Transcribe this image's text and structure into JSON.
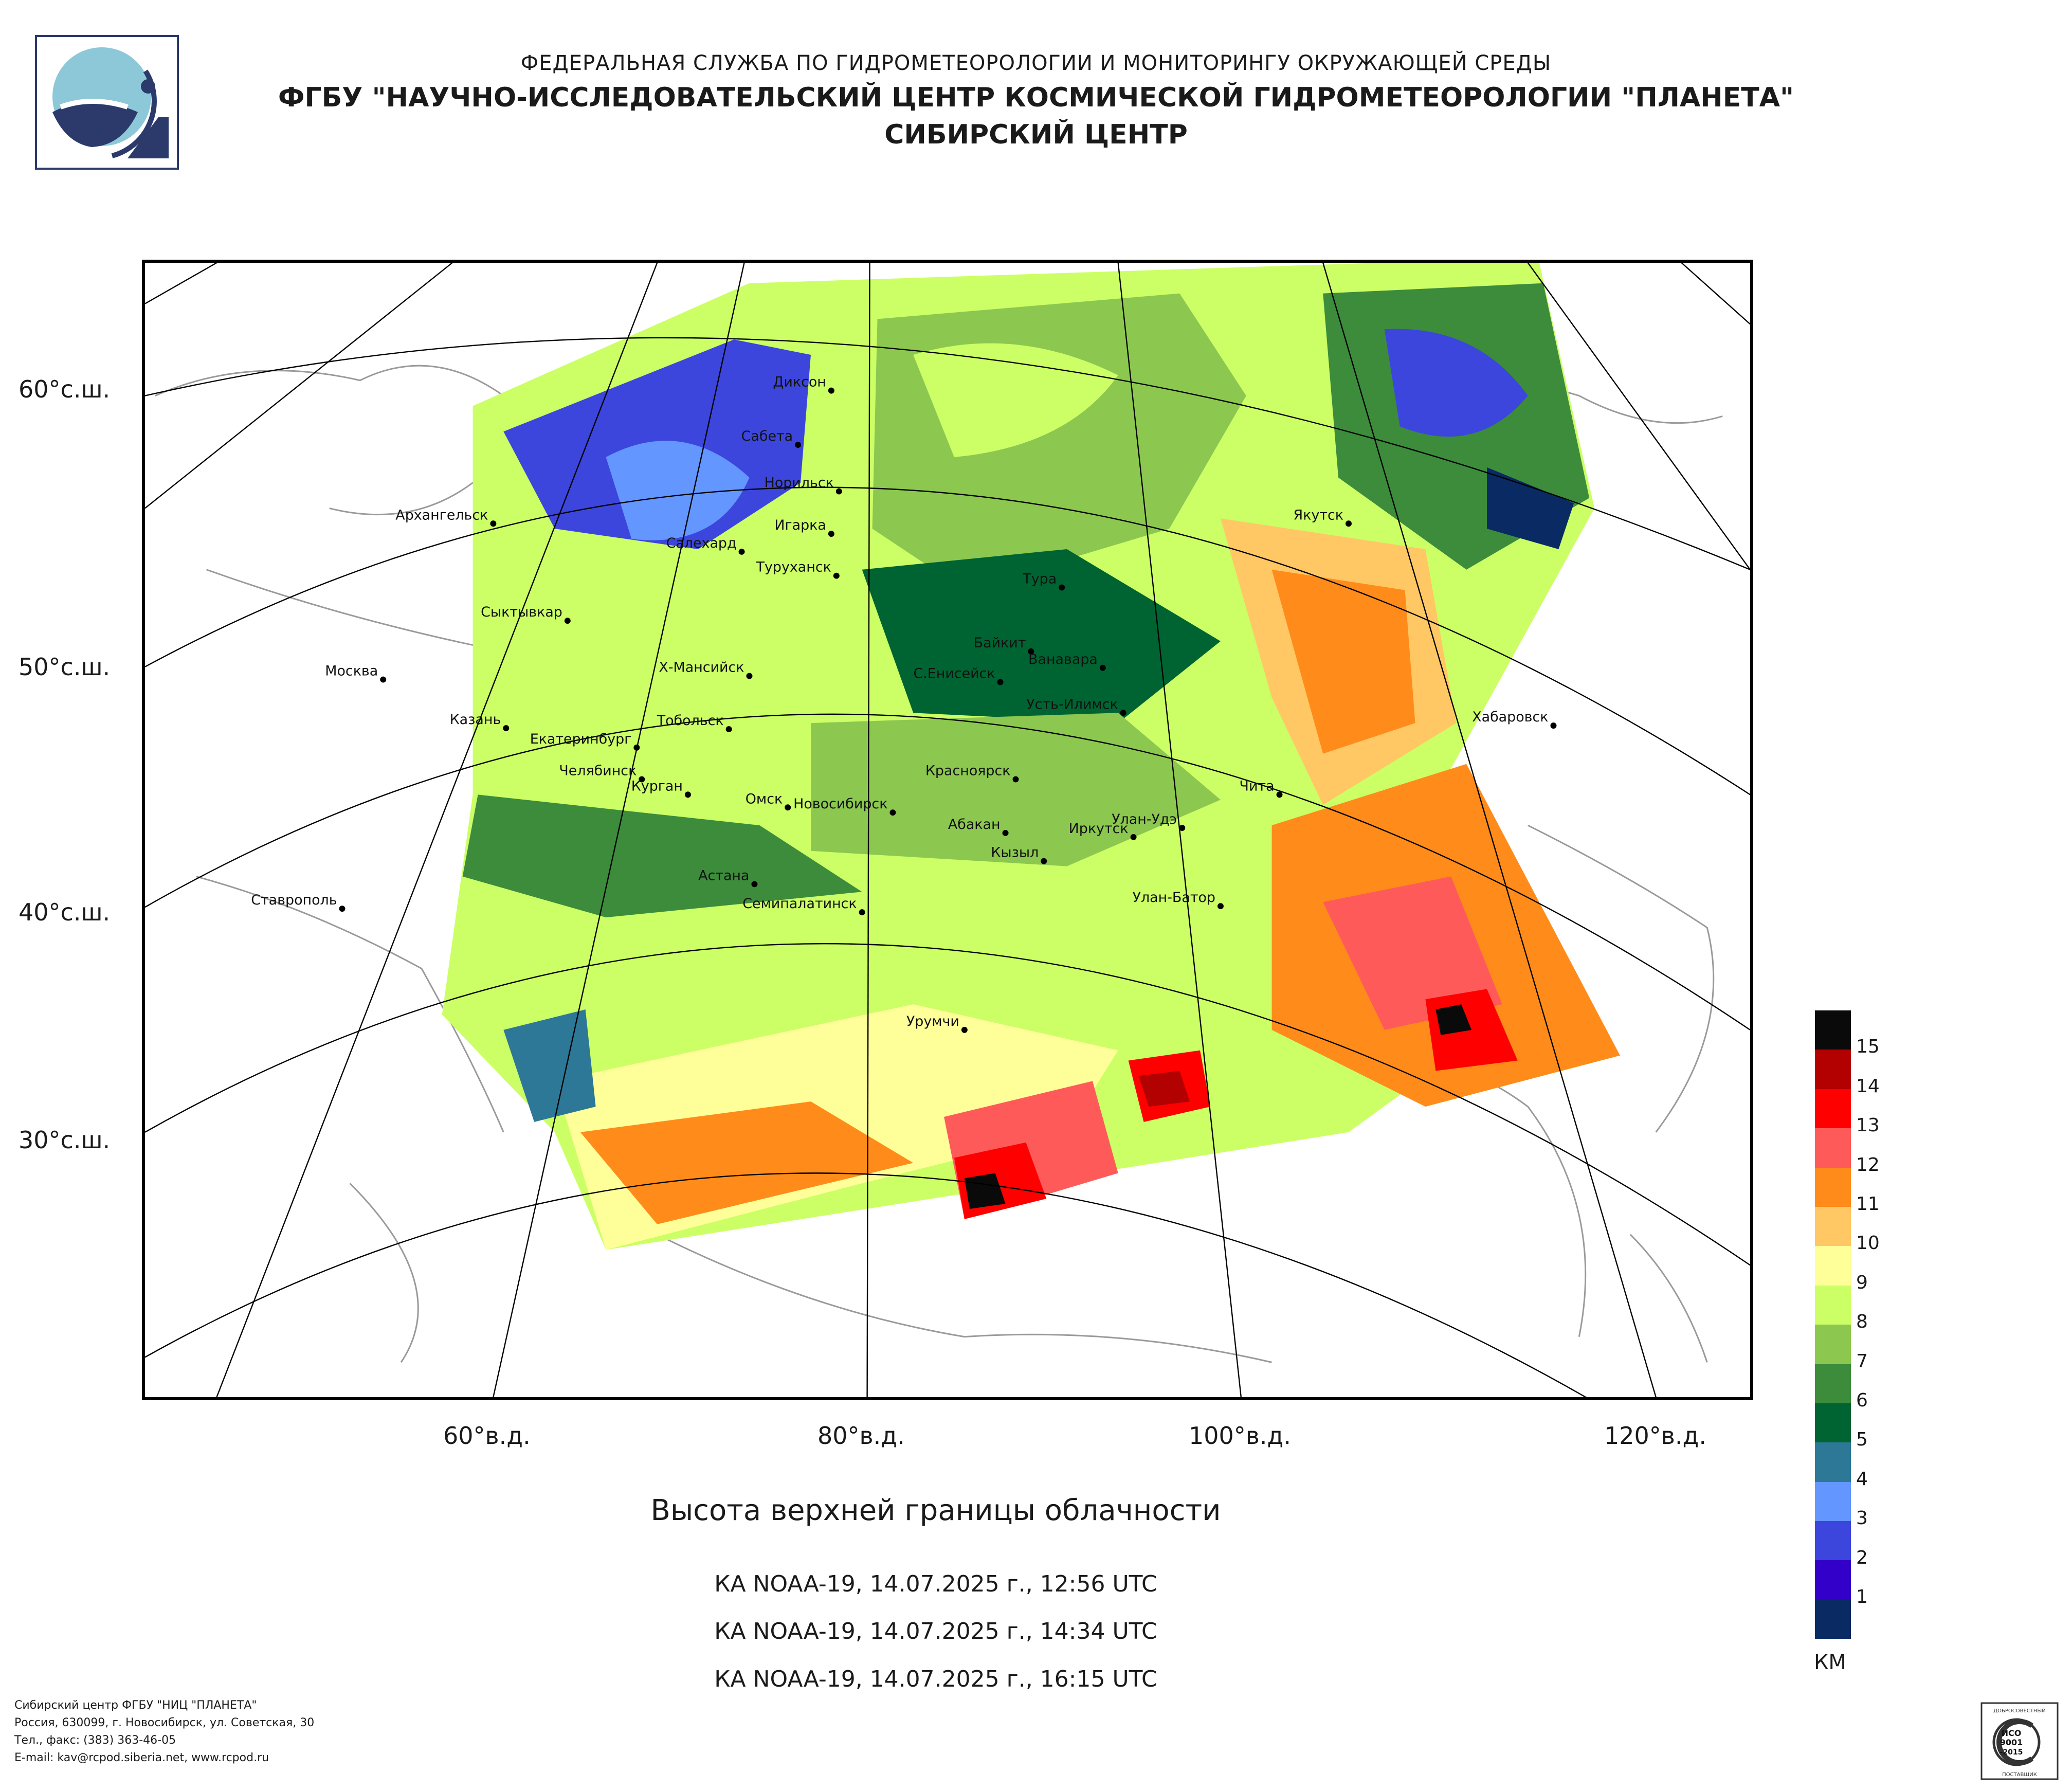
{
  "header": {
    "line1": "ФЕДЕРАЛЬНАЯ СЛУЖБА ПО ГИДРОМЕТЕОРОЛОГИИ И МОНИТОРИНГУ ОКРУЖАЮЩЕЙ СРЕДЫ",
    "line2": "ФГБУ \"НАУЧНО-ИССЛЕДОВАТЕЛЬСКИЙ ЦЕНТР КОСМИЧЕСКОЙ ГИДРОМЕТЕОРОЛОГИИ \"ПЛАНЕТА\"",
    "line3": "СИБИРСКИЙ ЦЕНТР"
  },
  "logo": {
    "icon": "planeta-logo-icon",
    "colors": [
      "#8cc8d8",
      "#2b3a6b"
    ]
  },
  "map": {
    "lat_labels": [
      "60°с.ш.",
      "50°с.ш.",
      "40°с.ш.",
      "30°с.ш."
    ],
    "lon_labels": [
      "60°в.д.",
      "80°в.д.",
      "100°в.д.",
      "120°в.д."
    ],
    "cities": [
      {
        "name": "Диксон"
      },
      {
        "name": "Сабета"
      },
      {
        "name": "Норильск"
      },
      {
        "name": "Игарка"
      },
      {
        "name": "Архангельск"
      },
      {
        "name": "Салехард"
      },
      {
        "name": "Туруханск"
      },
      {
        "name": "Тура"
      },
      {
        "name": "Якутск"
      },
      {
        "name": "Сыктывкар"
      },
      {
        "name": "Байкит"
      },
      {
        "name": "Ванавара"
      },
      {
        "name": "Москва"
      },
      {
        "name": "Х-Мансийск"
      },
      {
        "name": "С.Енисейск"
      },
      {
        "name": "Усть-Илимск"
      },
      {
        "name": "Хабаровск"
      },
      {
        "name": "Казань"
      },
      {
        "name": "Тобольск"
      },
      {
        "name": "Екатеринбург"
      },
      {
        "name": "Красноярск"
      },
      {
        "name": "Челябинск"
      },
      {
        "name": "Курган"
      },
      {
        "name": "Чита"
      },
      {
        "name": "Омск"
      },
      {
        "name": "Новосибирск"
      },
      {
        "name": "Улан-Удэ"
      },
      {
        "name": "Абакан"
      },
      {
        "name": "Иркутск"
      },
      {
        "name": "Кызыл"
      },
      {
        "name": "Астана"
      },
      {
        "name": "Ставрополь"
      },
      {
        "name": "Улан-Батор"
      },
      {
        "name": "Семипалатинск"
      },
      {
        "name": "Урумчи"
      }
    ]
  },
  "legend": {
    "unit": "КМ",
    "levels": [
      {
        "value": "15",
        "color": "#0a0a0a"
      },
      {
        "value": "14",
        "color": "#b30000"
      },
      {
        "value": "13",
        "color": "#ff0000"
      },
      {
        "value": "12",
        "color": "#ff5a5a"
      },
      {
        "value": "11",
        "color": "#ff8c1a"
      },
      {
        "value": "10",
        "color": "#ffc864"
      },
      {
        "value": "9",
        "color": "#ffff99"
      },
      {
        "value": "8",
        "color": "#ccff66"
      },
      {
        "value": "7",
        "color": "#8cc850"
      },
      {
        "value": "6",
        "color": "#3c8c3c"
      },
      {
        "value": "5",
        "color": "#006432"
      },
      {
        "value": "4",
        "color": "#2d7896"
      },
      {
        "value": "3",
        "color": "#6496ff"
      },
      {
        "value": "2",
        "color": "#3c46dc"
      },
      {
        "value": "1",
        "color": "#3200c8"
      },
      {
        "value": "",
        "color": "#0a2a64"
      }
    ]
  },
  "title": "Высота верхней границы облачности",
  "passes": [
    "КА NOAA-19, 14.07.2025 г., 12:56 UTC",
    "КА NOAA-19, 14.07.2025 г., 14:34 UTC",
    "КА NOAA-19, 14.07.2025 г., 16:15 UTC"
  ],
  "footer": {
    "line1": "Сибирский центр ФГБУ \"НИЦ \"ПЛАНЕТА\"",
    "line2": "Россия, 630099, г. Новосибирск, ул. Советская, 30",
    "line3": "Тел., факс: (383) 363-46-05",
    "line4": "E-mail: kav@rcpod.siberia.net, www.rcpod.ru"
  },
  "iso_badge": {
    "top_text": "ДОБРОСОВЕСТНЫЙ",
    "line1": "ИСО",
    "line2": "9001",
    "line3": "-2015",
    "bottom_text": "ПОСТАВЩИК"
  }
}
